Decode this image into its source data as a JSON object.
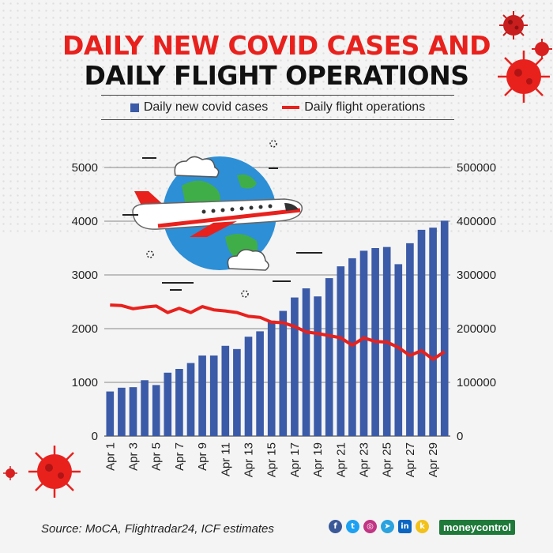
{
  "title_line1": "DAILY NEW COVID CASES AND",
  "title_line2": "DAILY FLIGHT OPERATIONS",
  "source": "Source: MoCA, Flightradar24, ICF estimates",
  "brand": "moneycontrol",
  "colors": {
    "bars": "#3b5ba8",
    "line": "#e8211d",
    "title_accent": "#e8211d",
    "brand": "#1f7a3a"
  },
  "social_icons": [
    "facebook-icon",
    "twitter-icon",
    "instagram-icon",
    "telegram-icon",
    "linkedin-icon",
    "koo-icon"
  ],
  "chart_data": {
    "type": "bar+line",
    "title": "DAILY NEW COVID CASES AND DAILY FLIGHT OPERATIONS",
    "categories": [
      "Apr 1",
      "Apr 2",
      "Apr 3",
      "Apr 4",
      "Apr 5",
      "Apr 6",
      "Apr 7",
      "Apr 8",
      "Apr 9",
      "Apr 10",
      "Apr 11",
      "Apr 12",
      "Apr 13",
      "Apr 14",
      "Apr 15",
      "Apr 16",
      "Apr 17",
      "Apr 18",
      "Apr 19",
      "Apr 20",
      "Apr 21",
      "Apr 22",
      "Apr 23",
      "Apr 24",
      "Apr 25",
      "Apr 26",
      "Apr 27",
      "Apr 28",
      "Apr 29",
      "Apr 30"
    ],
    "tick_labels": [
      "Apr 1",
      "Apr 3",
      "Apr 5",
      "Apr 7",
      "Apr 9",
      "Apr 11",
      "Apr 13",
      "Apr 15",
      "Apr 17",
      "Apr 19",
      "Apr 21",
      "Apr 23",
      "Apr 25",
      "Apr 27",
      "Apr 29"
    ],
    "series": [
      {
        "name": "Daily new covid cases",
        "type": "bar",
        "axis": "left",
        "values": [
          830,
          900,
          910,
          1040,
          950,
          1180,
          1250,
          1360,
          1500,
          1500,
          1680,
          1620,
          1850,
          1950,
          2150,
          2330,
          2580,
          2750,
          2600,
          2940,
          3160,
          3310,
          3450,
          3500,
          3520,
          3200,
          3590,
          3840,
          3880,
          4010
        ]
      },
      {
        "name": "Daily flight operations",
        "type": "line",
        "axis": "right",
        "values": [
          244000,
          243000,
          237000,
          240000,
          242000,
          230000,
          238000,
          230000,
          241000,
          235000,
          233000,
          230000,
          223000,
          221000,
          212000,
          211000,
          204000,
          194000,
          191000,
          187000,
          183000,
          169000,
          183000,
          176000,
          175000,
          165000,
          150000,
          159000,
          143000,
          157000
        ]
      }
    ],
    "y_left": {
      "ticks": [
        "0",
        "1000",
        "2000",
        "3000",
        "4000",
        "5000"
      ],
      "range": [
        0,
        5000
      ]
    },
    "y_right": {
      "ticks": [
        "0",
        "100000",
        "200000",
        "300000",
        "400000",
        "500000"
      ],
      "range": [
        0,
        500000
      ]
    },
    "grid": true,
    "legend_placement": "top"
  }
}
